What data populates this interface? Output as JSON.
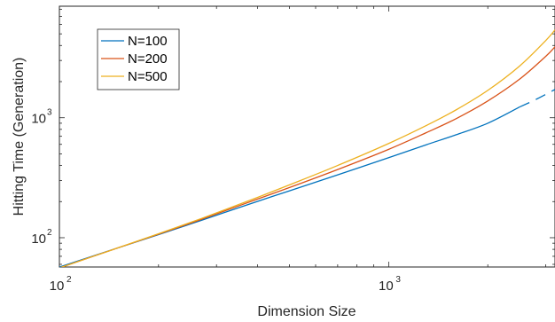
{
  "chart_data": {
    "type": "line",
    "xlabel": "Dimension Size",
    "ylabel": "Hitting Time (Generation)",
    "xscale": "log",
    "yscale": "log",
    "xlim": [
      100,
      3200
    ],
    "ylim": [
      57,
      8500
    ],
    "grid": false,
    "legend_position": "top-left",
    "x_ticks": [
      {
        "base": "10",
        "exp": "2",
        "value": 100
      },
      {
        "base": "10",
        "exp": "3",
        "value": 1000
      }
    ],
    "y_ticks": [
      {
        "base": "10",
        "exp": "2",
        "value": 100
      },
      {
        "base": "10",
        "exp": "3",
        "value": 1000
      }
    ],
    "series": [
      {
        "name": "N=100",
        "color": "#0072BD",
        "x": [
          100,
          150,
          200,
          250,
          300,
          400,
          500,
          700,
          1000,
          1300,
          1600,
          2000,
          2500
        ],
        "y": [
          57,
          82,
          106,
          130,
          154,
          201,
          246,
          334,
          465,
          595,
          720,
          900,
          1230
        ]
      },
      {
        "name": "N=200",
        "color": "#D95319",
        "x": [
          100,
          150,
          200,
          250,
          300,
          400,
          500,
          700,
          1000,
          1300,
          1600,
          2000,
          2500,
          3000,
          3200
        ],
        "y": [
          56,
          82,
          107,
          132,
          158,
          210,
          262,
          370,
          545,
          750,
          980,
          1380,
          2100,
          3250,
          3900
        ]
      },
      {
        "name": "N=500",
        "color": "#EDB120",
        "x": [
          100,
          150,
          200,
          250,
          300,
          400,
          500,
          700,
          1000,
          1300,
          1600,
          2000,
          2500,
          3000,
          3200
        ],
        "y": [
          56,
          82,
          108,
          134,
          161,
          217,
          276,
          400,
          610,
          860,
          1160,
          1690,
          2700,
          4400,
          5400
        ]
      },
      {
        "name": "",
        "color": "#0072BD",
        "dashed": true,
        "x": [
          2500,
          2800,
          3200
        ],
        "y": [
          1230,
          1420,
          1720
        ]
      }
    ]
  }
}
